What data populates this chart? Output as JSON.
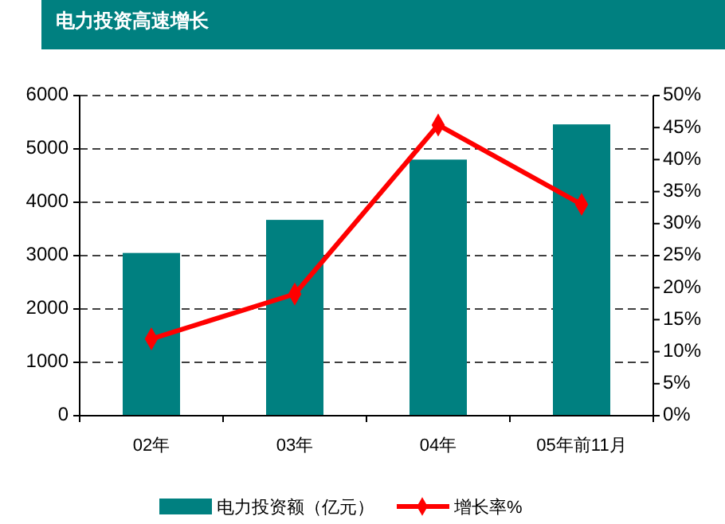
{
  "chart_data": {
    "type": "bar",
    "title": "电力投资高速增长",
    "categories": [
      "02年",
      "03年",
      "04年",
      "05年前11月"
    ],
    "series": [
      {
        "name": "电力投资额（亿元）",
        "color": "#008080",
        "values": [
          3050,
          3670,
          4800,
          5460
        ]
      },
      {
        "name": "增长率%",
        "type": "line",
        "axis": "y2",
        "color": "#ff0000",
        "values": [
          12,
          19,
          45.4,
          33
        ]
      }
    ],
    "ylim": [
      0,
      6000
    ],
    "yticks": [
      0,
      1000,
      2000,
      3000,
      4000,
      5000,
      6000
    ],
    "y2lim": [
      0,
      50
    ],
    "y2ticks": [
      {
        "value": 0,
        "label": "0%"
      },
      {
        "value": 5,
        "label": "5%"
      },
      {
        "value": 10,
        "label": "10%"
      },
      {
        "value": 15,
        "label": "15%"
      },
      {
        "value": 20,
        "label": "20%"
      },
      {
        "value": 25,
        "label": "25%"
      },
      {
        "value": 30,
        "label": "30%"
      },
      {
        "value": 35,
        "label": "35%"
      },
      {
        "value": 40,
        "label": "40%"
      },
      {
        "value": 45,
        "label": "45%"
      },
      {
        "value": 50,
        "label": "50%"
      }
    ],
    "grid": "y",
    "legend": "bottom",
    "marker": "diamond",
    "line_style": "solid"
  }
}
